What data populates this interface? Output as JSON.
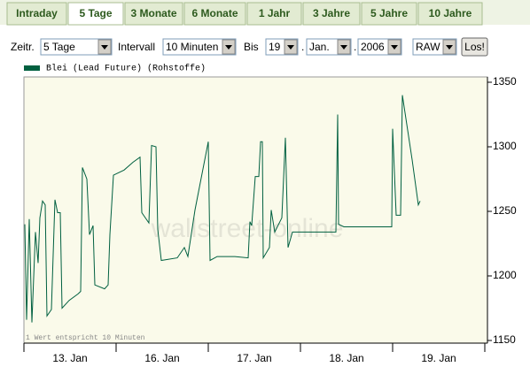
{
  "tabs": [
    "Intraday",
    "5 Tage",
    "3 Monate",
    "6 Monate",
    "1 Jahr",
    "3 Jahre",
    "5 Jahre",
    "10 Jahre"
  ],
  "selected_tab": 1,
  "controls": {
    "zeitraum_label": "Zeitr.",
    "zeitraum": "5 Tage",
    "intervall_label": "Intervall",
    "intervall": "10 Minuten",
    "bis_label": "Bis",
    "day": "19",
    "separator": ".",
    "month": "Jan.",
    "year": "2006",
    "mode": "RAW",
    "button": "Los!"
  },
  "chart_data": {
    "type": "line",
    "watermark": "wallstreet-online",
    "footnote": "1 Wert entspricht 10 Minuten",
    "xlim": [
      0,
      5
    ],
    "xticks": [
      {
        "value": 0.5,
        "label": "13. Jan"
      },
      {
        "value": 1.5,
        "label": "16. Jan"
      },
      {
        "value": 2.5,
        "label": "17. Jan"
      },
      {
        "value": 3.5,
        "label": "18. Jan"
      },
      {
        "value": 4.5,
        "label": "19. Jan"
      }
    ],
    "ylim": [
      1150,
      1350
    ],
    "yticks": [
      1150,
      1200,
      1250,
      1300,
      1350
    ],
    "series": [
      {
        "name": "Blei (Lead Future) (Rohstoffe)",
        "color": "#006040",
        "x": [
          0.01,
          0.029,
          0.058,
          0.087,
          0.125,
          0.154,
          0.173,
          0.202,
          0.231,
          0.25,
          0.298,
          0.337,
          0.365,
          0.394,
          0.413,
          0.49,
          0.587,
          0.615,
          0.635,
          0.683,
          0.712,
          0.75,
          0.769,
          0.875,
          0.913,
          0.933,
          0.971,
          1.087,
          1.183,
          1.26,
          1.279,
          1.356,
          1.385,
          1.433,
          1.452,
          1.49,
          1.663,
          1.74,
          1.779,
          1.856,
          2.0,
          2.019,
          2.096,
          2.288,
          2.433,
          2.452,
          2.471,
          2.51,
          2.548,
          2.567,
          2.587,
          2.596,
          2.663,
          2.683,
          2.721,
          2.798,
          2.837,
          2.865,
          2.913,
          3.385,
          3.404,
          3.413,
          3.471,
          3.99,
          4.0,
          4.038,
          4.087,
          4.106,
          4.212,
          4.279,
          4.298
        ],
        "values": [
          1240,
          1166,
          1244,
          1164,
          1234,
          1210,
          1245,
          1258,
          1255,
          1169,
          1174,
          1259,
          1249,
          1249,
          1175,
          1181,
          1186,
          1188,
          1284,
          1275,
          1232,
          1239,
          1193,
          1190,
          1193,
          1232,
          1278,
          1282,
          1288,
          1292,
          1249,
          1241,
          1301,
          1300,
          1236,
          1212,
          1214,
          1222,
          1215,
          1251,
          1304,
          1212,
          1215,
          1215,
          1214,
          1242,
          1239,
          1277,
          1277,
          1304,
          1304,
          1214,
          1222,
          1251,
          1234,
          1245,
          1307,
          1222,
          1234,
          1234,
          1325,
          1240,
          1238,
          1238,
          1314,
          1247,
          1247,
          1340,
          1290,
          1255,
          1258
        ]
      }
    ]
  }
}
